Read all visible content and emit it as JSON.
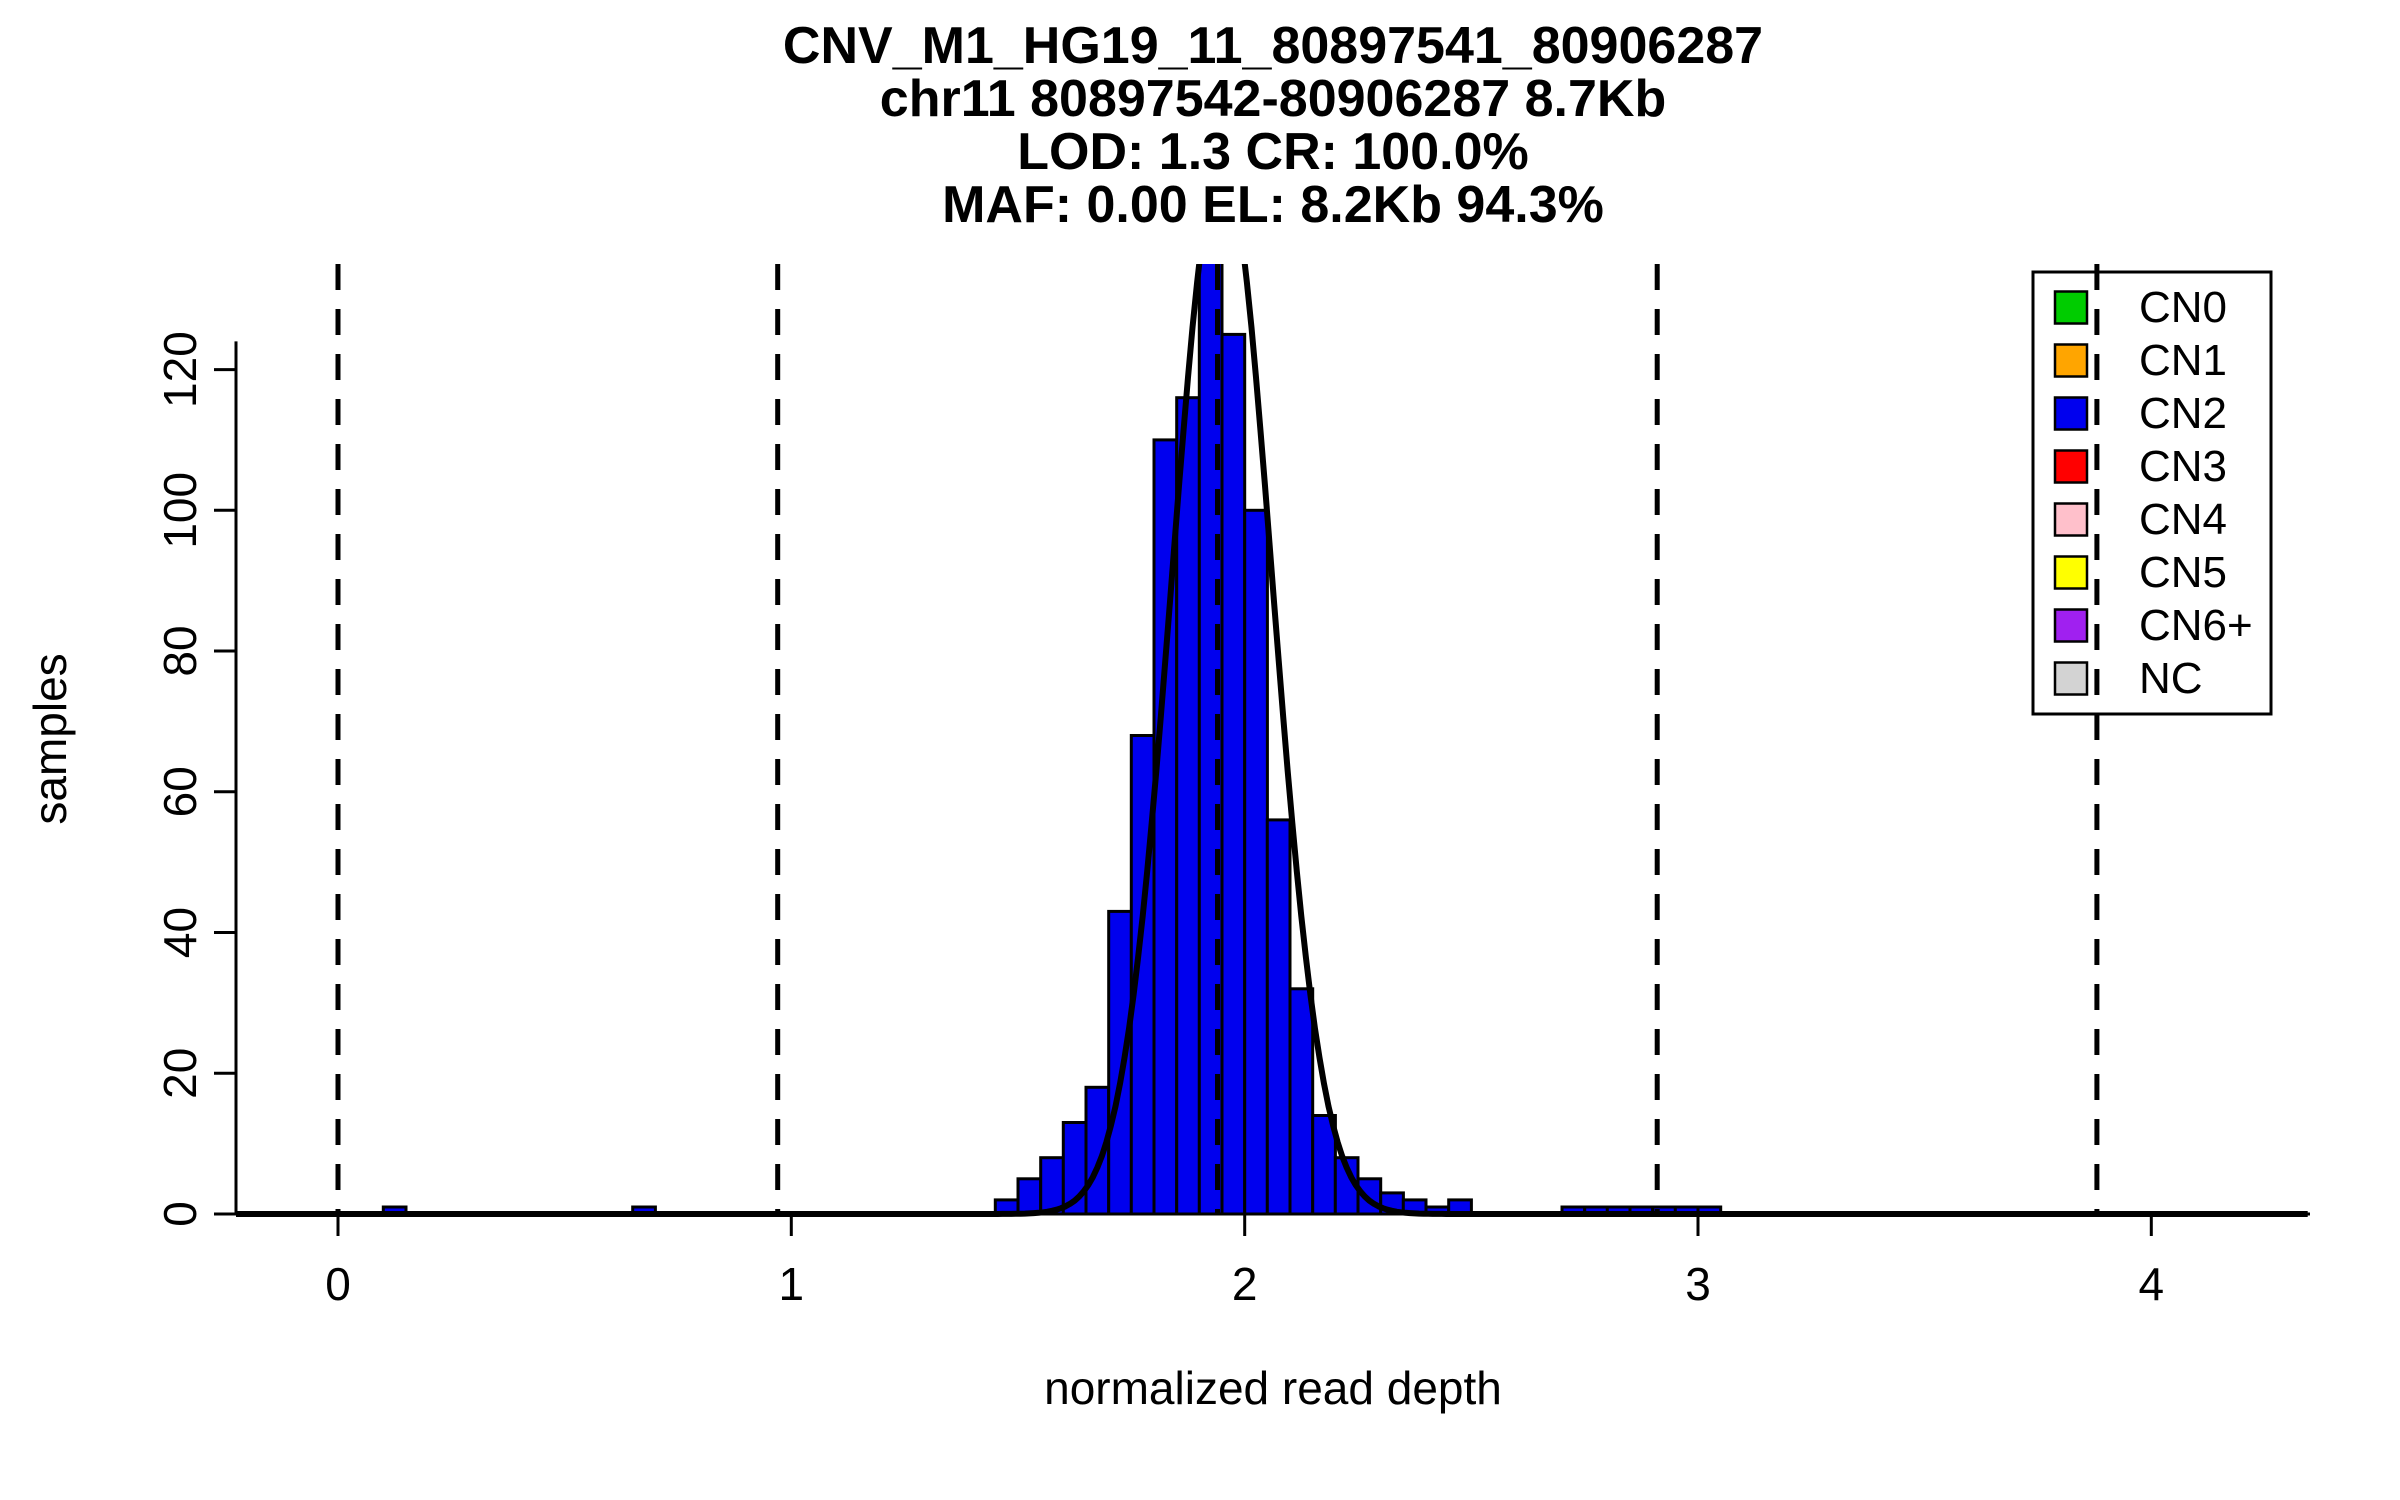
{
  "title_lines": [
    "CNV_M1_HG19_11_80897541_80906287",
    "chr11 80897542-80906287 8.7Kb",
    "LOD: 1.3 CR: 100.0%",
    "MAF: 0.00 EL: 8.2Kb 94.3%"
  ],
  "chart_data": {
    "type": "bar",
    "subtype": "histogram",
    "title": "CNV_M1_HG19_11_80897541_80906287 / chr11 80897542-80906287 8.7Kb / LOD: 1.3 CR: 100.0% / MAF: 0.00 EL: 8.2Kb 94.3%",
    "xlabel": "normalized read depth",
    "ylabel": "samples",
    "xlim": [
      -0.225,
      4.35
    ],
    "ylim": [
      0,
      135
    ],
    "x_ticks": [
      0,
      1,
      2,
      3,
      4
    ],
    "y_ticks": [
      0,
      20,
      40,
      60,
      80,
      100,
      120
    ],
    "grid": false,
    "bin_width": 0.05,
    "bins": [
      [
        0.1,
        1
      ],
      [
        0.65,
        1
      ],
      [
        1.45,
        2
      ],
      [
        1.5,
        5
      ],
      [
        1.55,
        8
      ],
      [
        1.6,
        13
      ],
      [
        1.65,
        18
      ],
      [
        1.7,
        43
      ],
      [
        1.75,
        68
      ],
      [
        1.8,
        110
      ],
      [
        1.85,
        116
      ],
      [
        1.9,
        137
      ],
      [
        1.95,
        125
      ],
      [
        2.0,
        100
      ],
      [
        2.05,
        56
      ],
      [
        2.1,
        32
      ],
      [
        2.15,
        14
      ],
      [
        2.2,
        8
      ],
      [
        2.25,
        5
      ],
      [
        2.3,
        3
      ],
      [
        2.35,
        2
      ],
      [
        2.4,
        1
      ],
      [
        2.45,
        2
      ],
      [
        2.7,
        1
      ],
      [
        2.75,
        1
      ],
      [
        2.8,
        1
      ],
      [
        2.85,
        1
      ],
      [
        2.9,
        1
      ],
      [
        2.95,
        1
      ],
      [
        3.0,
        1
      ]
    ],
    "curve": {
      "type": "gaussian",
      "mean": 1.95,
      "sd": 0.11,
      "peak": 150
    },
    "dashed_lines": [
      0.0,
      0.97,
      1.94,
      2.91,
      3.88
    ],
    "bar_color": "#0000EE",
    "bar_border": "#000000",
    "curve_color": "#000000",
    "dashed_color": "#000000",
    "axis_color": "#000000",
    "text_color": "#000000",
    "legend_position": "top-right",
    "legend": [
      {
        "label": "CN0",
        "color": "#00CC00"
      },
      {
        "label": "CN1",
        "color": "#FFA500"
      },
      {
        "label": "CN2",
        "color": "#0000EE"
      },
      {
        "label": "CN3",
        "color": "#FF0000"
      },
      {
        "label": "CN4",
        "color": "#FFC0CB"
      },
      {
        "label": "CN5",
        "color": "#FFFF00"
      },
      {
        "label": "CN6+",
        "color": "#A020F0"
      },
      {
        "label": "NC",
        "color": "#D3D3D3"
      }
    ]
  }
}
